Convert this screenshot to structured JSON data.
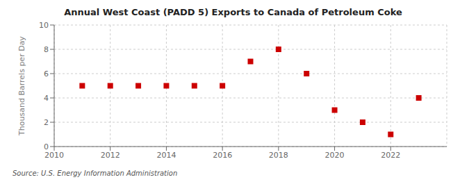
{
  "chart_data": {
    "type": "scatter",
    "title": "Annual West Coast (PADD 5) Exports to Canada of Petroleum Coke",
    "y_label": "Thousand Barrels per Day",
    "annotations": [
      "Source: U.S. Energy Information Administration"
    ],
    "x": [
      2011,
      2012,
      2013,
      2014,
      2015,
      2016,
      2017,
      2018,
      2019,
      2020,
      2021,
      2022,
      2023
    ],
    "values": [
      5,
      5,
      5,
      5,
      5,
      5,
      7,
      8,
      6,
      3,
      2,
      1,
      4
    ],
    "color": "#cc0000",
    "marker": "square",
    "xlim": [
      2010,
      2024
    ],
    "xticks": [
      2010,
      2012,
      2014,
      2016,
      2018,
      2020,
      2022
    ],
    "ylim": [
      0,
      10
    ],
    "yticks": [
      0,
      2,
      4,
      6,
      8,
      10
    ],
    "grid": true
  }
}
